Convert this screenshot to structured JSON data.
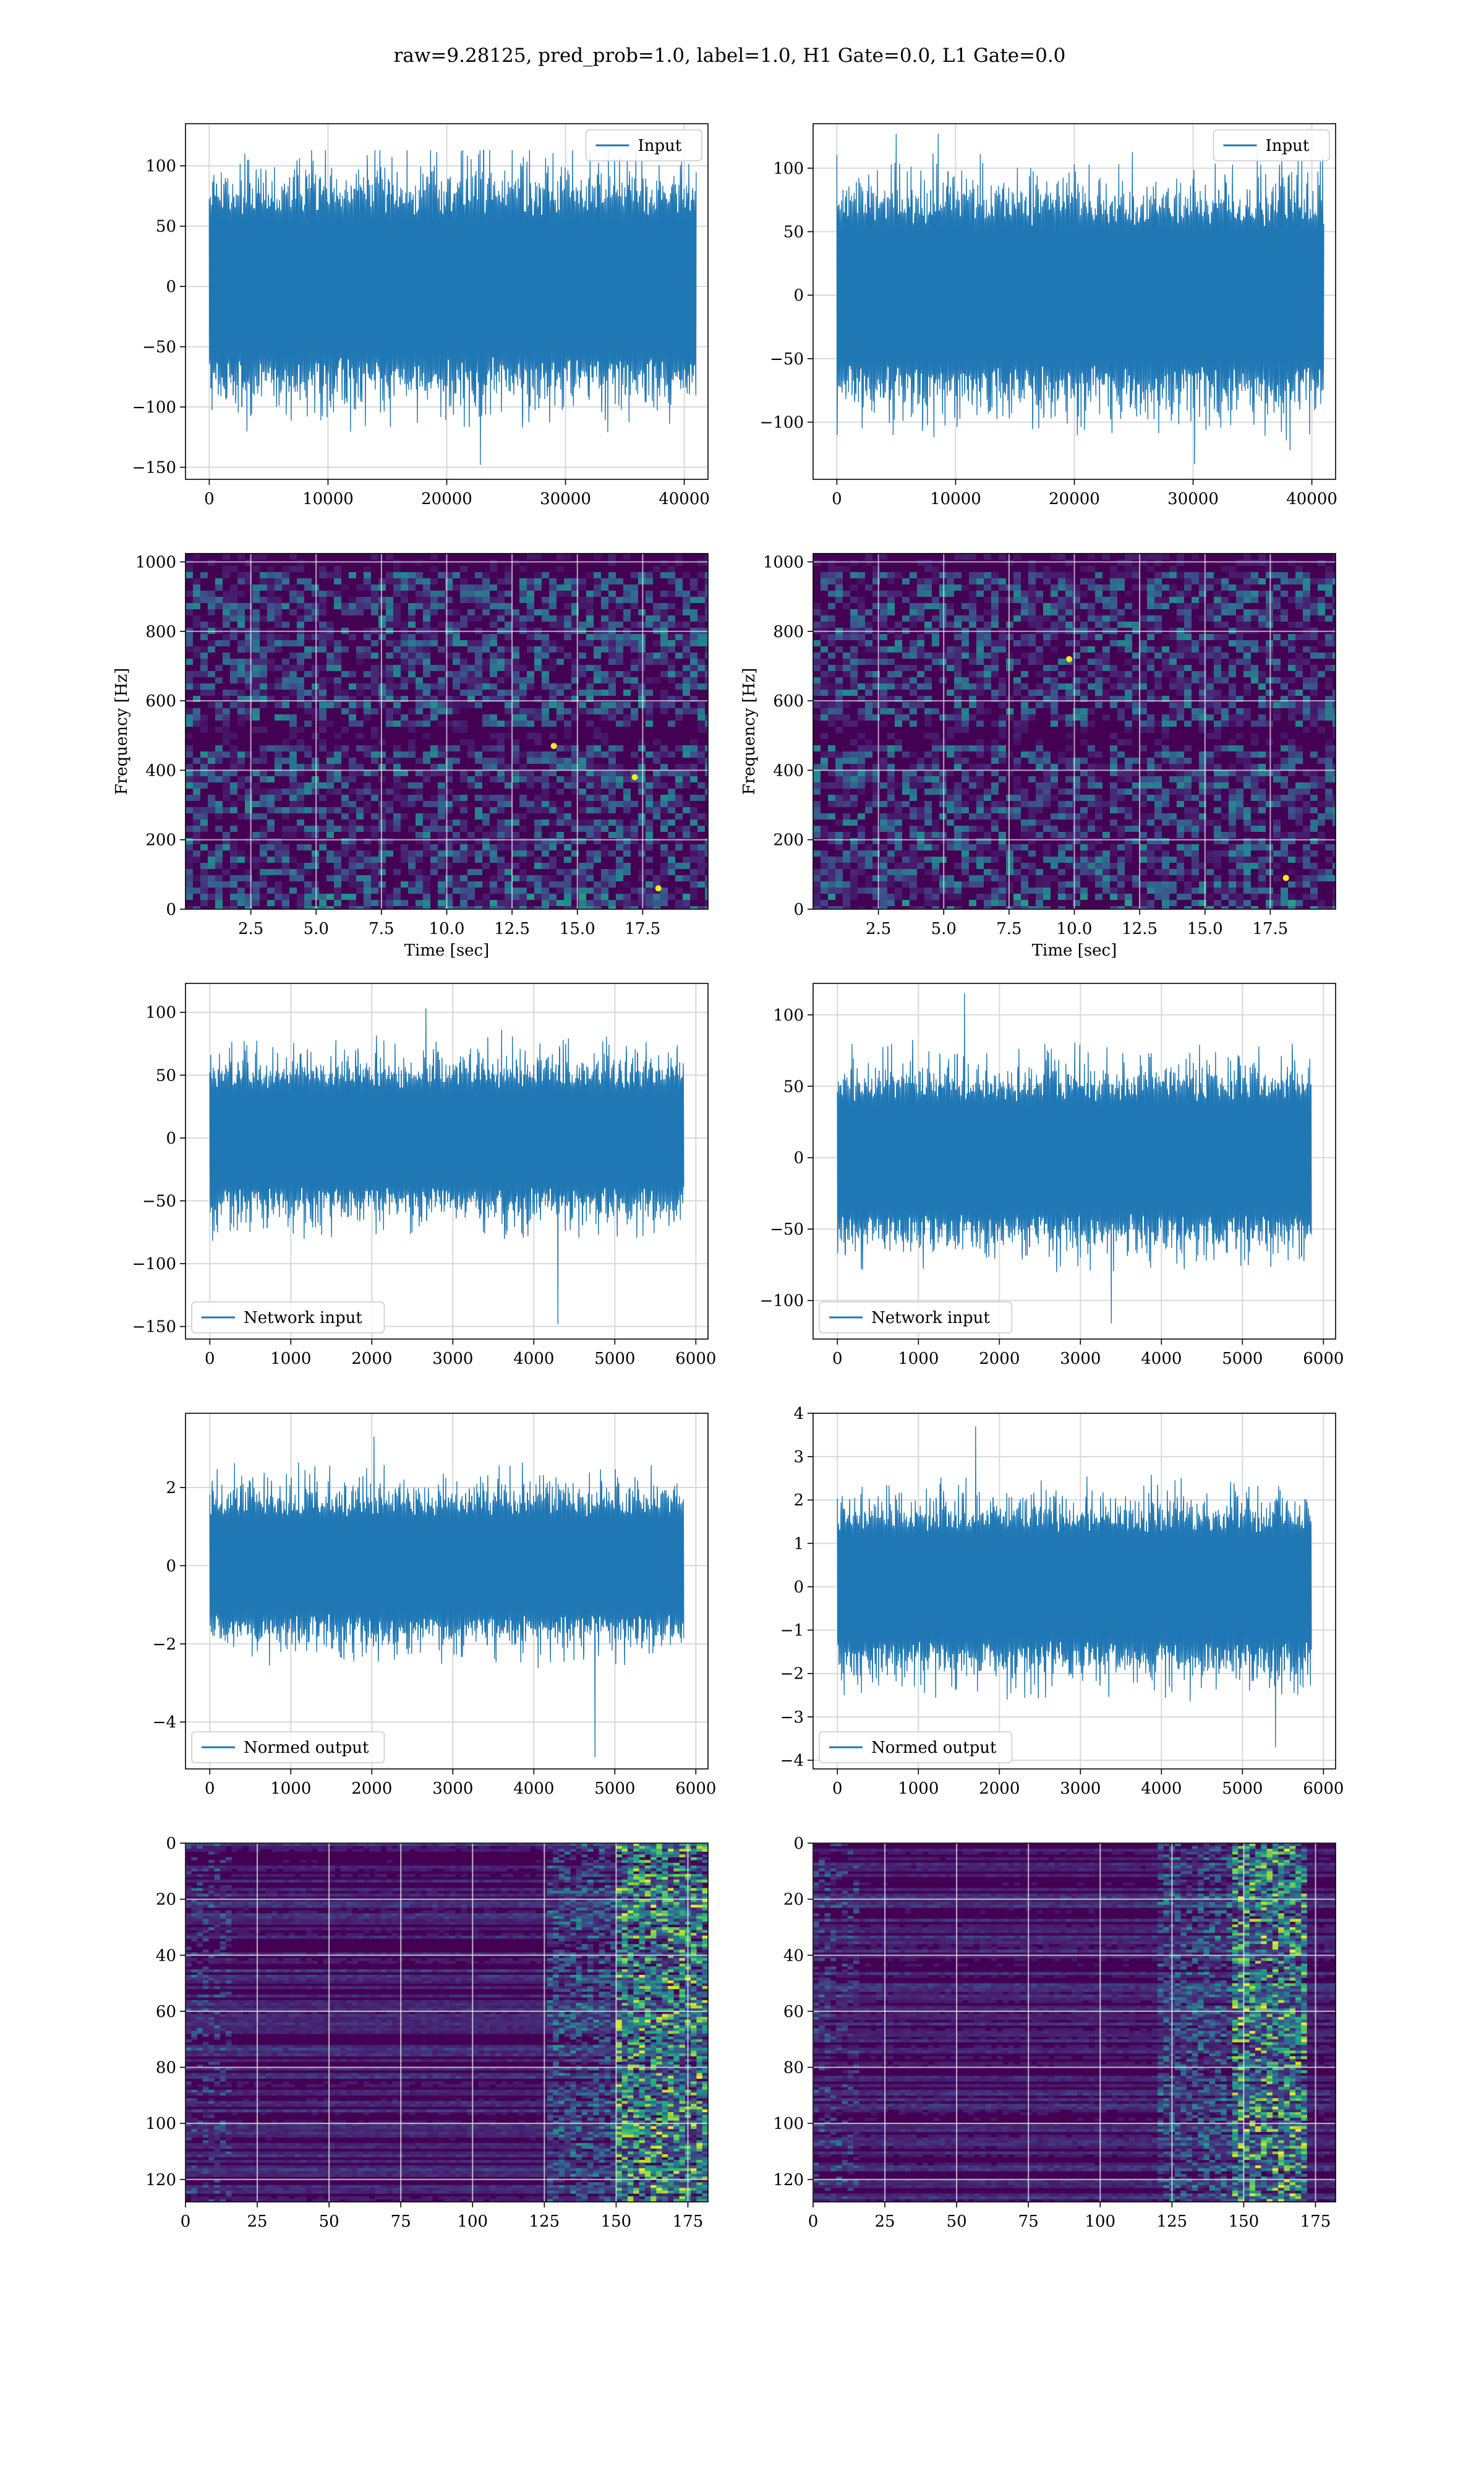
{
  "figure": {
    "title": "raw=9.28125, pred_prob=1.0, label=1.0, H1 Gate=0.0, L1 Gate=0.0"
  },
  "colors": {
    "line": "#1f77b4",
    "viridis_dark": "#440154",
    "viridis_mid": "#21918c",
    "viridis_bright": "#fde725",
    "grid": "#d9d9d9"
  },
  "chart_data": [
    {
      "id": "input-h1",
      "type": "line",
      "series": [
        {
          "name": "Input",
          "x_range": [
            0,
            40960
          ],
          "envelope": {
            "typical": [
              -75,
              75
            ],
            "min": -148,
            "max": 113
          }
        }
      ],
      "xlim": [
        -2000,
        42000
      ],
      "ylim": [
        -160,
        135
      ],
      "xticks": [
        0,
        10000,
        20000,
        30000,
        40000
      ],
      "yticks": [
        -150,
        -100,
        -50,
        0,
        50,
        100
      ],
      "legend": "upper-right",
      "grid": true
    },
    {
      "id": "input-l1",
      "type": "line",
      "series": [
        {
          "name": "Input",
          "x_range": [
            0,
            40960
          ],
          "envelope": {
            "typical": [
              -70,
              70
            ],
            "min": -133,
            "max": 127
          }
        }
      ],
      "xlim": [
        -2000,
        42000
      ],
      "ylim": [
        -145,
        135
      ],
      "xticks": [
        0,
        10000,
        20000,
        30000,
        40000
      ],
      "yticks": [
        -100,
        -50,
        0,
        50,
        100
      ],
      "legend": "upper-right",
      "grid": true
    },
    {
      "id": "spectrogram-h1",
      "type": "heatmap",
      "xlabel": "Time [sec]",
      "ylabel": "Frequency [Hz]",
      "xlim": [
        0,
        20
      ],
      "ylim": [
        0,
        1024
      ],
      "xticks": [
        2.5,
        5.0,
        7.5,
        10.0,
        12.5,
        15.0,
        17.5
      ],
      "yticks": [
        0,
        200,
        400,
        600,
        800,
        1000
      ],
      "colormap": "viridis",
      "dark_bands_hz": [
        500,
        1000
      ],
      "bright_spots": [
        [
          14.1,
          470
        ],
        [
          17.2,
          380
        ],
        [
          18.1,
          60
        ]
      ],
      "grid": true
    },
    {
      "id": "spectrogram-l1",
      "type": "heatmap",
      "xlabel": "Time [sec]",
      "ylabel": "Frequency [Hz]",
      "xlim": [
        0,
        20
      ],
      "ylim": [
        0,
        1024
      ],
      "xticks": [
        2.5,
        5.0,
        7.5,
        10.0,
        12.5,
        15.0,
        17.5
      ],
      "yticks": [
        0,
        200,
        400,
        600,
        800,
        1000
      ],
      "colormap": "viridis",
      "dark_bands_hz": [
        500,
        1000
      ],
      "bright_spots": [
        [
          9.8,
          720
        ],
        [
          18.1,
          90
        ]
      ],
      "grid": true
    },
    {
      "id": "network-input-h1",
      "type": "line",
      "series": [
        {
          "name": "Network input",
          "x_range": [
            0,
            5850
          ],
          "envelope": {
            "typical": [
              -50,
              50
            ],
            "min": -148,
            "max": 103
          }
        }
      ],
      "xlim": [
        -300,
        6150
      ],
      "ylim": [
        -160,
        123
      ],
      "xticks": [
        0,
        1000,
        2000,
        3000,
        4000,
        5000,
        6000
      ],
      "yticks": [
        -150,
        -100,
        -50,
        0,
        50,
        100
      ],
      "legend": "lower-left",
      "grid": true
    },
    {
      "id": "network-input-l1",
      "type": "line",
      "series": [
        {
          "name": "Network input",
          "x_range": [
            0,
            5850
          ],
          "envelope": {
            "typical": [
              -50,
              50
            ],
            "min": -116,
            "max": 115
          }
        }
      ],
      "xlim": [
        -300,
        6150
      ],
      "ylim": [
        -127,
        122
      ],
      "xticks": [
        0,
        1000,
        2000,
        3000,
        4000,
        5000,
        6000
      ],
      "yticks": [
        -100,
        -50,
        0,
        50,
        100
      ],
      "legend": "lower-left",
      "grid": true
    },
    {
      "id": "normed-output-h1",
      "type": "line",
      "series": [
        {
          "name": "Normed output",
          "x_range": [
            0,
            5850
          ],
          "envelope": {
            "typical": [
              -1.6,
              1.6
            ],
            "min": -4.9,
            "max": 3.3
          }
        }
      ],
      "xlim": [
        -300,
        6150
      ],
      "ylim": [
        -5.2,
        3.9
      ],
      "xticks": [
        0,
        1000,
        2000,
        3000,
        4000,
        5000,
        6000
      ],
      "yticks": [
        -4,
        -2,
        0,
        2
      ],
      "legend": "lower-left",
      "grid": true
    },
    {
      "id": "normed-output-l1",
      "type": "line",
      "series": [
        {
          "name": "Normed output",
          "x_range": [
            0,
            5850
          ],
          "envelope": {
            "typical": [
              -1.6,
              1.6
            ],
            "min": -3.7,
            "max": 3.7
          }
        }
      ],
      "xlim": [
        -300,
        6150
      ],
      "ylim": [
        -4.2,
        4.0
      ],
      "xticks": [
        0,
        1000,
        2000,
        3000,
        4000,
        5000,
        6000
      ],
      "yticks": [
        -4,
        -3,
        -2,
        -1,
        0,
        1,
        2,
        3,
        4
      ],
      "legend": "lower-left",
      "grid": true
    },
    {
      "id": "feature-map-h1",
      "type": "heatmap",
      "xlim": [
        0,
        182
      ],
      "ylim": [
        128,
        0
      ],
      "xticks": [
        0,
        25,
        50,
        75,
        100,
        125,
        150,
        175
      ],
      "yticks": [
        0,
        20,
        40,
        60,
        80,
        100,
        120
      ],
      "colormap": "viridis",
      "bright_region_cols": [
        150,
        182
      ],
      "grid": true
    },
    {
      "id": "feature-map-l1",
      "type": "heatmap",
      "xlim": [
        0,
        182
      ],
      "ylim": [
        128,
        0
      ],
      "xticks": [
        0,
        25,
        50,
        75,
        100,
        125,
        150,
        175
      ],
      "yticks": [
        0,
        20,
        40,
        60,
        80,
        100,
        120
      ],
      "colormap": "viridis",
      "bright_region_cols": [
        145,
        170
      ],
      "grid": true
    }
  ]
}
